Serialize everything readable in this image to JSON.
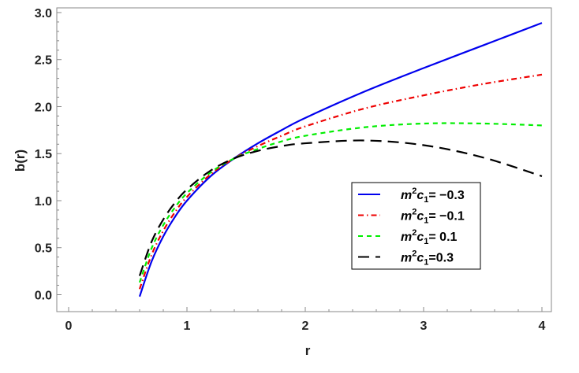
{
  "chart_data": {
    "type": "line",
    "xlabel": "r",
    "ylabel": "b(r)",
    "xlim": [
      -0.1,
      4.08
    ],
    "ylim": [
      -0.18,
      3.05
    ],
    "xticks": [
      0,
      1,
      2,
      3,
      4
    ],
    "xtick_labels": [
      "0",
      "1",
      "2",
      "3",
      "4"
    ],
    "yticks": [
      0.0,
      0.5,
      1.0,
      1.5,
      2.0,
      2.5,
      3.0
    ],
    "ytick_labels": [
      "0.0",
      "0.5",
      "1.0",
      "1.5",
      "2.0",
      "2.5",
      "3.0"
    ],
    "legend_position": "lower-right",
    "series": [
      {
        "name": "m2c1= −0.3",
        "legend": {
          "pre": "m",
          "sup": "2",
          "mid": "c",
          "sub": "1",
          "post": "= −0.3"
        },
        "color": "#0000ee",
        "style": "solid",
        "x": [
          0.6,
          0.7,
          0.8,
          0.9,
          1.0,
          1.2,
          1.4,
          1.6,
          1.8,
          2.0,
          2.5,
          3.0,
          3.5,
          4.0
        ],
        "y": [
          -0.02,
          0.35,
          0.62,
          0.83,
          1.0,
          1.26,
          1.45,
          1.61,
          1.75,
          1.88,
          2.16,
          2.41,
          2.65,
          2.89
        ]
      },
      {
        "name": "m2c1= −0.1",
        "legend": {
          "pre": "m",
          "sup": "2",
          "mid": "c",
          "sub": "1",
          "post": "= −0.1"
        },
        "color": "#ee0000",
        "style": "dashdot",
        "x": [
          0.6,
          0.7,
          0.8,
          0.9,
          1.0,
          1.2,
          1.4,
          1.6,
          1.8,
          2.0,
          2.5,
          3.0,
          3.5,
          4.0
        ],
        "y": [
          0.06,
          0.42,
          0.68,
          0.88,
          1.04,
          1.28,
          1.45,
          1.58,
          1.69,
          1.79,
          1.98,
          2.12,
          2.24,
          2.34
        ]
      },
      {
        "name": "m2c1= 0.1",
        "legend": {
          "pre": "m",
          "sup": "2",
          "mid": "c",
          "sub": "1",
          "post": "= 0.1"
        },
        "color": "#00ee00",
        "style": "dashed",
        "x": [
          0.6,
          0.7,
          0.8,
          0.9,
          1.0,
          1.2,
          1.4,
          1.6,
          1.8,
          2.0,
          2.5,
          3.0,
          3.5,
          4.0
        ],
        "y": [
          0.13,
          0.49,
          0.74,
          0.93,
          1.08,
          1.3,
          1.45,
          1.55,
          1.63,
          1.69,
          1.78,
          1.82,
          1.82,
          1.8
        ]
      },
      {
        "name": "m2c1=0.3",
        "legend": {
          "pre": "m",
          "sup": "2",
          "mid": "c",
          "sub": "1",
          "post": "=0.3"
        },
        "color": "#000000",
        "style": "longdash",
        "x": [
          0.6,
          0.7,
          0.8,
          0.9,
          1.0,
          1.2,
          1.4,
          1.6,
          1.8,
          2.0,
          2.5,
          3.0,
          3.5,
          4.0
        ],
        "y": [
          0.2,
          0.56,
          0.8,
          0.98,
          1.12,
          1.32,
          1.45,
          1.53,
          1.58,
          1.61,
          1.64,
          1.59,
          1.46,
          1.26
        ]
      }
    ]
  }
}
